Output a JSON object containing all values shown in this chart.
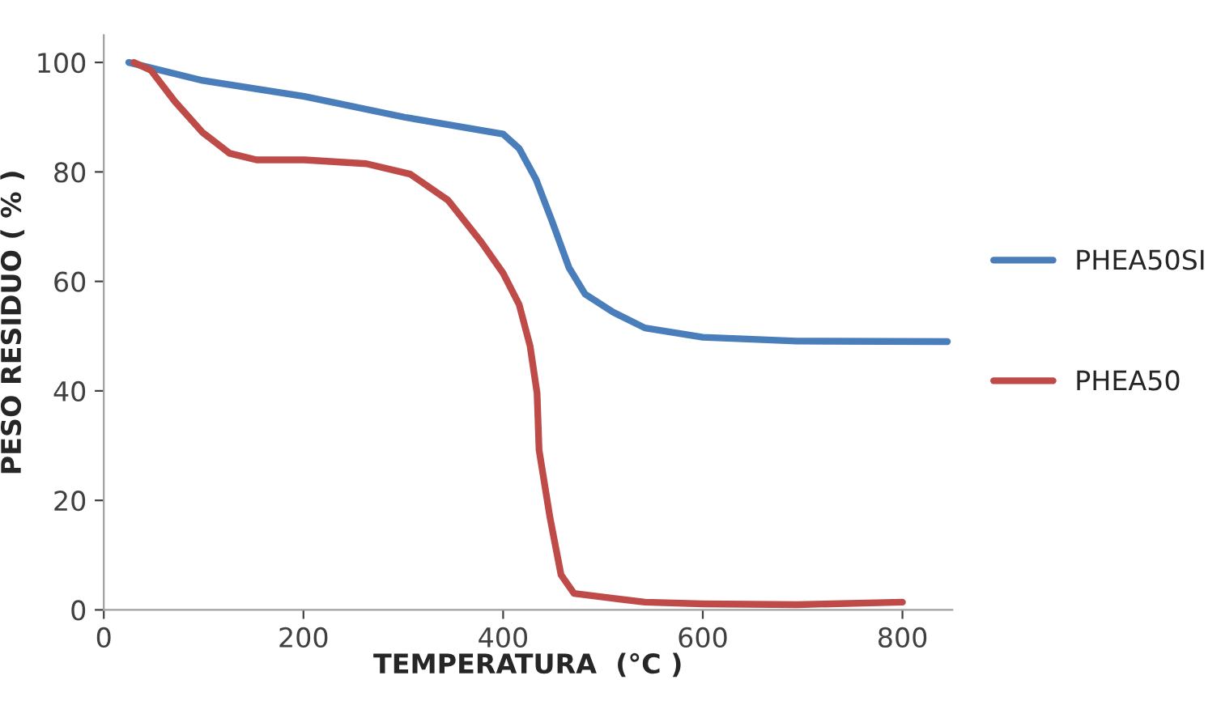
{
  "chart_data": {
    "type": "line",
    "xlabel": "TEMPERATURA  (°C )",
    "ylabel": "PESO RESIDUO ( % )",
    "xlim": [
      0,
      850
    ],
    "xticks": [
      0,
      200,
      400,
      600,
      800
    ],
    "ylim": [
      0,
      105
    ],
    "yticks": [
      0,
      20,
      40,
      60,
      80,
      100
    ],
    "grid": false,
    "legend": "right",
    "marker": "none",
    "line_style": "solid",
    "series": [
      {
        "name": "PHEA50SI",
        "color": "#4a7ebb",
        "x": [
          25,
          99,
          201,
          301,
          400,
          416,
          433,
          449,
          466,
          482,
          510,
          542,
          600,
          694,
          845
        ],
        "values": [
          100,
          96.7,
          93.8,
          90,
          86.9,
          84.3,
          78.6,
          71,
          62.5,
          57.7,
          54.4,
          51.5,
          49.8,
          49.1,
          49
        ]
      },
      {
        "name": "PHEA50",
        "color": "#be4b48",
        "x": [
          30,
          47,
          71,
          99,
          126,
          153,
          201,
          263,
          307,
          345,
          378,
          400,
          416,
          427,
          434,
          436,
          447,
          458,
          471,
          510,
          542,
          600,
          694,
          800
        ],
        "values": [
          100,
          98.6,
          92.9,
          87.2,
          83.4,
          82.2,
          82.2,
          81.5,
          79.6,
          74.8,
          67.2,
          61.5,
          55.8,
          48.2,
          39.6,
          29.2,
          16.8,
          6.4,
          3.0,
          2.1,
          1.4,
          1.1,
          0.95,
          1.4
        ]
      }
    ]
  }
}
